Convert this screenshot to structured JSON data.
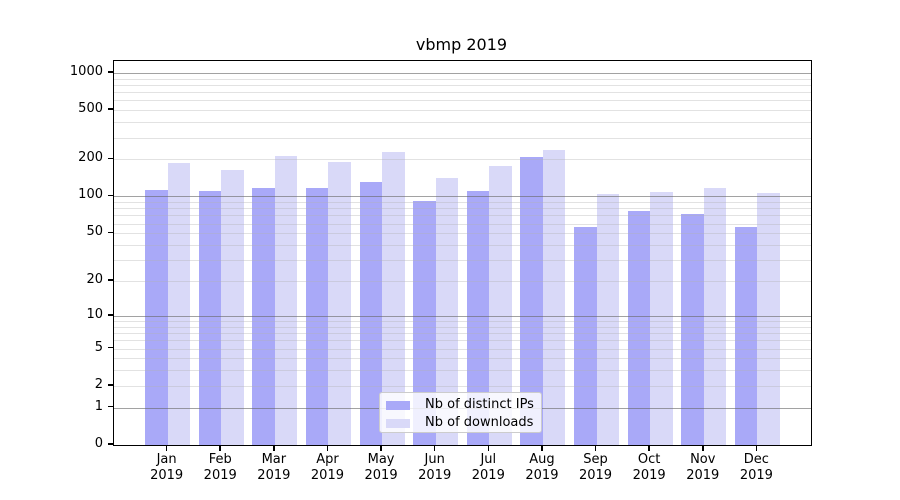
{
  "chart_data": {
    "type": "bar",
    "title": "vbmp 2019",
    "months": [
      "Jan",
      "Feb",
      "Mar",
      "Apr",
      "May",
      "Jun",
      "Jul",
      "Aug",
      "Sep",
      "Oct",
      "Nov",
      "Dec"
    ],
    "year": "2019",
    "categories": [
      "Jan 2019",
      "Feb 2019",
      "Mar 2019",
      "Apr 2019",
      "May 2019",
      "Jun 2019",
      "Jul 2019",
      "Aug 2019",
      "Sep 2019",
      "Oct 2019",
      "Nov 2019",
      "Dec 2019"
    ],
    "series": [
      {
        "name": "Nb of distinct IPs",
        "color": "#a9a9f8",
        "values": [
          113,
          110,
          118,
          117,
          131,
          92,
          111,
          210,
          56,
          76,
          72,
          56
        ]
      },
      {
        "name": "Nb of downloads",
        "color": "#d9d9f8",
        "values": [
          186,
          165,
          213,
          190,
          230,
          142,
          177,
          240,
          105,
          108,
          118,
          107
        ]
      }
    ],
    "xlabel": "",
    "ylabel": "",
    "y_scale": "log1p",
    "y_ticks": [
      0,
      1,
      2,
      5,
      10,
      20,
      50,
      100,
      200,
      500,
      1000
    ],
    "y_major_gridlines": [
      1,
      10,
      100,
      1000
    ],
    "y_minor_gridline_decades": [
      1,
      10,
      100
    ],
    "ylim": [
      0,
      1250
    ],
    "grid": true,
    "legend_position": "lower center inside",
    "colors": {
      "major_grid": "#a8a8a8",
      "minor_grid": "#e9e9e9",
      "axis": "#000000",
      "background": "#ffffff"
    }
  }
}
